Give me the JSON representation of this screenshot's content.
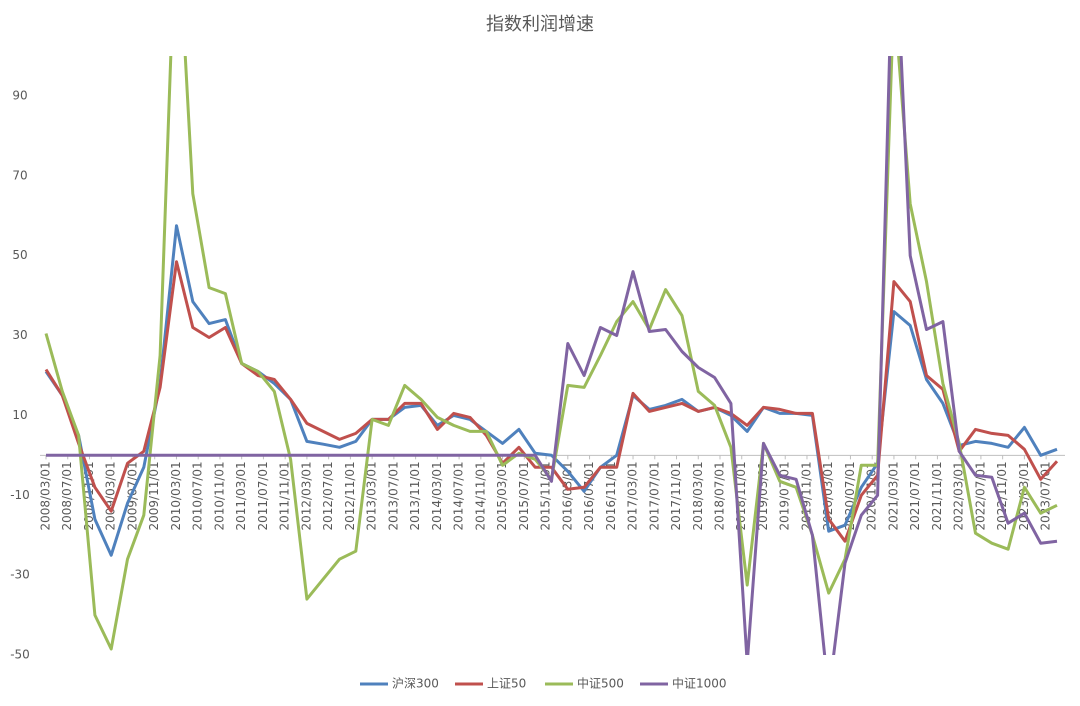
{
  "chart_data": {
    "type": "line",
    "title": "指数利润增速",
    "x": [
      "2008/03/01",
      "2008/06/01",
      "2008/09/01",
      "2008/12/01",
      "2009/03/01",
      "2009/06/01",
      "2009/09/01",
      "2009/12/01",
      "2010/03/01",
      "2010/06/01",
      "2010/09/01",
      "2010/12/01",
      "2011/03/01",
      "2011/06/01",
      "2011/09/01",
      "2011/12/01",
      "2012/03/01",
      "2012/06/01",
      "2012/09/01",
      "2012/12/01",
      "2013/03/01",
      "2013/06/01",
      "2013/09/01",
      "2013/12/01",
      "2014/03/01",
      "2014/06/01",
      "2014/09/01",
      "2014/12/01",
      "2015/03/01",
      "2015/06/01",
      "2015/09/01",
      "2015/12/01",
      "2016/03/01",
      "2016/06/01",
      "2016/09/01",
      "2016/12/01",
      "2017/03/01",
      "2017/06/01",
      "2017/09/01",
      "2017/12/01",
      "2018/03/01",
      "2018/06/01",
      "2018/09/01",
      "2018/12/01",
      "2019/03/01",
      "2019/06/01",
      "2019/09/01",
      "2019/12/01",
      "2020/03/01",
      "2020/06/01",
      "2020/09/01",
      "2020/12/01",
      "2021/03/01",
      "2021/06/01",
      "2021/09/01",
      "2021/12/01",
      "2022/03/01",
      "2022/06/01",
      "2022/09/01",
      "2022/12/01",
      "2023/03/01",
      "2023/06/01",
      "2023/09/01"
    ],
    "series": [
      {
        "name": "沪深300",
        "color": "#4f81bd",
        "values": [
          21,
          15,
          5,
          -16,
          -25,
          -12,
          -3,
          18,
          57.5,
          38.5,
          33,
          34,
          23,
          21,
          18,
          14,
          3.5,
          2.8,
          2,
          3.5,
          9,
          9,
          12,
          12.5,
          7.5,
          10,
          9,
          6,
          3,
          6.5,
          0.5,
          0,
          -4,
          -9,
          -3,
          0,
          15,
          11.5,
          12.5,
          14,
          11,
          12,
          10,
          6,
          12,
          10.5,
          10.5,
          10,
          -19,
          -17.5,
          -8,
          -2,
          36,
          32.5,
          19,
          13,
          2.5,
          3.5,
          3,
          2,
          7,
          0,
          1.5
        ]
      },
      {
        "name": "上证50",
        "color": "#c0504d",
        "values": [
          21.5,
          15,
          3,
          -8,
          -14,
          -2,
          1,
          17,
          48.5,
          32,
          29.5,
          32,
          23,
          20,
          19,
          14,
          8,
          6,
          4,
          5.5,
          9,
          9,
          13,
          13,
          6.5,
          10.5,
          9.5,
          5,
          -2,
          2,
          -3,
          -3,
          -8.5,
          -8,
          -3,
          -3,
          15.5,
          11,
          12,
          13,
          11,
          12,
          10.5,
          7.5,
          12,
          11.5,
          10.5,
          10.5,
          -16,
          -21.5,
          -10,
          -5,
          43.5,
          38.5,
          20,
          16.5,
          1,
          6.5,
          5.5,
          5,
          1.5,
          -6,
          -1.5
        ]
      },
      {
        "name": "中证500",
        "color": "#9bbb59",
        "values": [
          30.5,
          16,
          5,
          -40,
          -48.5,
          -26,
          -15,
          25,
          140,
          65.5,
          42,
          40.5,
          23,
          21,
          16,
          -1,
          -36,
          -31,
          -26,
          -24,
          9,
          7.5,
          17.5,
          14,
          9.5,
          7.5,
          6,
          6,
          -2.5,
          0.5,
          -1,
          -6,
          17.5,
          17,
          25,
          33.5,
          38.5,
          31.5,
          41.5,
          35,
          16,
          12.5,
          2,
          -32.5,
          3,
          -6.5,
          -8,
          -20,
          -34.5,
          -26,
          -2.5,
          -2.5,
          115,
          63,
          43.5,
          18,
          3,
          -19.5,
          -22,
          -23.5,
          -8,
          -14.5,
          -12.5
        ]
      },
      {
        "name": "中证1000",
        "color": "#8064a2",
        "values": [
          0,
          0,
          0,
          0,
          0,
          0,
          0,
          0,
          0,
          0,
          0,
          0,
          0,
          0,
          0,
          0,
          0,
          0,
          0,
          0,
          0,
          0,
          0,
          0,
          0,
          0,
          0,
          0,
          0,
          0,
          0,
          -6.5,
          28,
          20,
          32,
          30,
          46,
          31,
          31.5,
          26,
          22,
          19.5,
          13,
          -52,
          3,
          -5,
          -6,
          -20,
          -60,
          -27,
          -15,
          -10,
          140,
          50,
          31.5,
          33.5,
          1,
          -5,
          -5.5,
          -17,
          -14.5,
          -22,
          -21.5
        ]
      }
    ],
    "ylim": [
      -50,
      100
    ],
    "yticks": [
      -50,
      -30,
      -10,
      10,
      30,
      50,
      70,
      90
    ],
    "xticks": [
      "2008/03/01",
      "2008/07/01",
      "2008/11/01",
      "2009/03/01",
      "2009/07/01",
      "2009/11/01",
      "2010/03/01",
      "2010/07/01",
      "2010/11/01",
      "2011/03/01",
      "2011/07/01",
      "2011/11/01",
      "2012/03/01",
      "2012/07/01",
      "2012/11/01",
      "2013/03/01",
      "2013/07/01",
      "2013/11/01",
      "2014/03/01",
      "2014/07/01",
      "2014/11/01",
      "2015/03/01",
      "2015/07/01",
      "2015/11/01",
      "2016/03/01",
      "2016/07/01",
      "2016/11/01",
      "2017/03/01",
      "2017/07/01",
      "2017/11/01",
      "2018/03/01",
      "2018/07/01",
      "2018/11/01",
      "2019/03/01",
      "2019/07/01",
      "2019/11/01",
      "2020/03/01",
      "2020/07/01",
      "2020/11/01",
      "2021/03/01",
      "2021/07/01",
      "2021/11/01",
      "2022/03/01",
      "2022/07/01",
      "2022/11/01",
      "2023/03/01",
      "2023/07/01"
    ],
    "grid": false,
    "legend": "bottom"
  }
}
